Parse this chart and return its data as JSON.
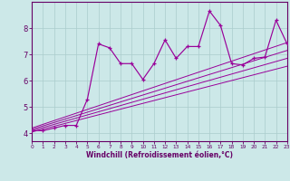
{
  "xlabel": "Windchill (Refroidissement éolien,°C)",
  "xlim": [
    0,
    23
  ],
  "ylim": [
    3.7,
    9.0
  ],
  "yticks": [
    4,
    5,
    6,
    7,
    8
  ],
  "xticks": [
    0,
    1,
    2,
    3,
    4,
    5,
    6,
    7,
    8,
    9,
    10,
    11,
    12,
    13,
    14,
    15,
    16,
    17,
    18,
    19,
    20,
    21,
    22,
    23
  ],
  "bg_color": "#cce8e8",
  "line_color": "#990099",
  "grid_color": "#aacccc",
  "main_series_x": [
    0,
    1,
    2,
    3,
    4,
    5,
    6,
    7,
    8,
    9,
    10,
    11,
    12,
    13,
    14,
    15,
    16,
    17,
    18,
    19,
    20,
    21,
    22,
    23
  ],
  "main_series_y": [
    4.1,
    4.1,
    4.2,
    4.3,
    4.3,
    5.3,
    7.4,
    7.25,
    6.65,
    6.65,
    6.05,
    6.65,
    7.55,
    6.85,
    7.3,
    7.3,
    8.65,
    8.1,
    6.65,
    6.6,
    6.85,
    6.9,
    8.3,
    7.4
  ],
  "diag_lines": [
    {
      "x": [
        0,
        23
      ],
      "y": [
        4.05,
        6.55
      ]
    },
    {
      "x": [
        0,
        23
      ],
      "y": [
        4.1,
        6.85
      ]
    },
    {
      "x": [
        0,
        23
      ],
      "y": [
        4.15,
        7.15
      ]
    },
    {
      "x": [
        0,
        23
      ],
      "y": [
        4.2,
        7.45
      ]
    }
  ]
}
